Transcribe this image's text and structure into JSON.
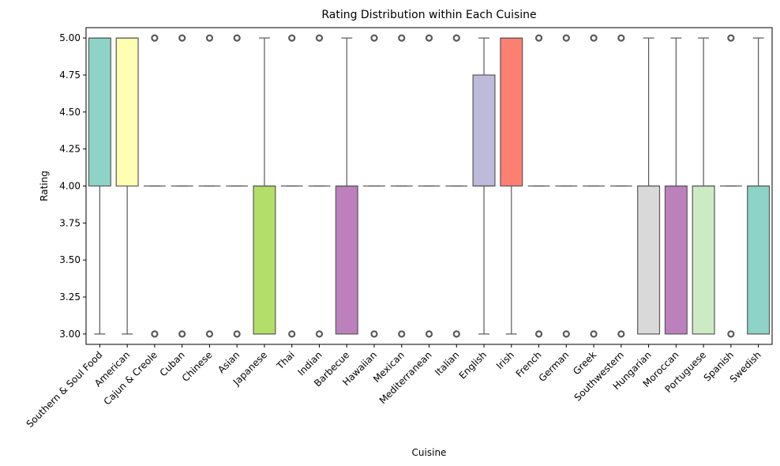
{
  "chart_data": {
    "type": "box",
    "title": "Rating Distribution within Each Cuisine",
    "xlabel": "Cuisine",
    "ylabel": "Rating",
    "ylim": [
      2.93,
      5.07
    ],
    "yticks": [
      3.0,
      3.25,
      3.5,
      3.75,
      4.0,
      4.25,
      4.5,
      4.75,
      5.0
    ],
    "ytick_labels": [
      "3.00",
      "3.25",
      "3.50",
      "3.75",
      "4.00",
      "4.25",
      "4.50",
      "4.75",
      "5.00"
    ],
    "grid": false,
    "legend": "none",
    "categories": [
      "Southern & Soul Food",
      "American",
      "Cajun & Creole",
      "Cuban",
      "Chinese",
      "Asian",
      "Japanese",
      "Thai",
      "Indian",
      "Barbecue",
      "Hawaiian",
      "Mexican",
      "Mediterranean",
      "Italian",
      "English",
      "Irish",
      "French",
      "German",
      "Greek",
      "Southwestern",
      "Hungarian",
      "Moroccan",
      "Portuguese",
      "Spanish",
      "Swedish"
    ],
    "boxes": [
      {
        "whisker_low": 3.0,
        "q1": 4.0,
        "median": 5.0,
        "q3": 5.0,
        "whisker_high": 5.0,
        "outliers": [],
        "color": "#8dd3c7"
      },
      {
        "whisker_low": 3.0,
        "q1": 4.0,
        "median": 5.0,
        "q3": 5.0,
        "whisker_high": 5.0,
        "outliers": [],
        "color": "#ffffb3"
      },
      {
        "whisker_low": 4.0,
        "q1": 4.0,
        "median": 4.0,
        "q3": 4.0,
        "whisker_high": 4.0,
        "outliers": [
          3.0,
          5.0
        ],
        "color": "#bebada"
      },
      {
        "whisker_low": 4.0,
        "q1": 4.0,
        "median": 4.0,
        "q3": 4.0,
        "whisker_high": 4.0,
        "outliers": [
          3.0,
          5.0
        ],
        "color": "#fb8072"
      },
      {
        "whisker_low": 4.0,
        "q1": 4.0,
        "median": 4.0,
        "q3": 4.0,
        "whisker_high": 4.0,
        "outliers": [
          3.0,
          5.0
        ],
        "color": "#80b1d3"
      },
      {
        "whisker_low": 4.0,
        "q1": 4.0,
        "median": 4.0,
        "q3": 4.0,
        "whisker_high": 4.0,
        "outliers": [
          3.0,
          5.0
        ],
        "color": "#fdb462"
      },
      {
        "whisker_low": 3.0,
        "q1": 3.0,
        "median": 4.0,
        "q3": 4.0,
        "whisker_high": 5.0,
        "outliers": [],
        "color": "#b3de69"
      },
      {
        "whisker_low": 4.0,
        "q1": 4.0,
        "median": 4.0,
        "q3": 4.0,
        "whisker_high": 4.0,
        "outliers": [
          3.0,
          5.0
        ],
        "color": "#fccde5"
      },
      {
        "whisker_low": 4.0,
        "q1": 4.0,
        "median": 4.0,
        "q3": 4.0,
        "whisker_high": 4.0,
        "outliers": [
          3.0,
          5.0
        ],
        "color": "#d9d9d9"
      },
      {
        "whisker_low": 3.0,
        "q1": 3.0,
        "median": 4.0,
        "q3": 4.0,
        "whisker_high": 5.0,
        "outliers": [],
        "color": "#bc80bd"
      },
      {
        "whisker_low": 4.0,
        "q1": 4.0,
        "median": 4.0,
        "q3": 4.0,
        "whisker_high": 4.0,
        "outliers": [
          3.0,
          5.0
        ],
        "color": "#ccebc5"
      },
      {
        "whisker_low": 4.0,
        "q1": 4.0,
        "median": 4.0,
        "q3": 4.0,
        "whisker_high": 4.0,
        "outliers": [
          3.0,
          5.0
        ],
        "color": "#ffed6f"
      },
      {
        "whisker_low": 4.0,
        "q1": 4.0,
        "median": 4.0,
        "q3": 4.0,
        "whisker_high": 4.0,
        "outliers": [
          3.0,
          5.0
        ],
        "color": "#8dd3c7"
      },
      {
        "whisker_low": 4.0,
        "q1": 4.0,
        "median": 4.0,
        "q3": 4.0,
        "whisker_high": 4.0,
        "outliers": [
          3.0,
          5.0
        ],
        "color": "#ffffb3"
      },
      {
        "whisker_low": 3.0,
        "q1": 4.0,
        "median": 4.0,
        "q3": 4.75,
        "whisker_high": 5.0,
        "outliers": [],
        "color": "#bebada"
      },
      {
        "whisker_low": 3.0,
        "q1": 4.0,
        "median": 5.0,
        "q3": 5.0,
        "whisker_high": 5.0,
        "outliers": [],
        "color": "#fb8072"
      },
      {
        "whisker_low": 4.0,
        "q1": 4.0,
        "median": 4.0,
        "q3": 4.0,
        "whisker_high": 4.0,
        "outliers": [
          3.0,
          5.0
        ],
        "color": "#80b1d3"
      },
      {
        "whisker_low": 4.0,
        "q1": 4.0,
        "median": 4.0,
        "q3": 4.0,
        "whisker_high": 4.0,
        "outliers": [
          3.0,
          5.0
        ],
        "color": "#fdb462"
      },
      {
        "whisker_low": 4.0,
        "q1": 4.0,
        "median": 4.0,
        "q3": 4.0,
        "whisker_high": 4.0,
        "outliers": [
          3.0,
          5.0
        ],
        "color": "#b3de69"
      },
      {
        "whisker_low": 4.0,
        "q1": 4.0,
        "median": 4.0,
        "q3": 4.0,
        "whisker_high": 4.0,
        "outliers": [
          3.0,
          5.0
        ],
        "color": "#fccde5"
      },
      {
        "whisker_low": 3.0,
        "q1": 3.0,
        "median": 4.0,
        "q3": 4.0,
        "whisker_high": 5.0,
        "outliers": [],
        "color": "#d9d9d9"
      },
      {
        "whisker_low": 3.0,
        "q1": 3.0,
        "median": 4.0,
        "q3": 4.0,
        "whisker_high": 5.0,
        "outliers": [],
        "color": "#bc80bd"
      },
      {
        "whisker_low": 3.0,
        "q1": 3.0,
        "median": 4.0,
        "q3": 4.0,
        "whisker_high": 5.0,
        "outliers": [],
        "color": "#ccebc5"
      },
      {
        "whisker_low": 4.0,
        "q1": 4.0,
        "median": 4.0,
        "q3": 4.0,
        "whisker_high": 4.0,
        "outliers": [
          3.0,
          5.0
        ],
        "color": "#ffed6f"
      },
      {
        "whisker_low": 3.0,
        "q1": 3.0,
        "median": 4.0,
        "q3": 4.0,
        "whisker_high": 5.0,
        "outliers": [],
        "color": "#8dd3c7"
      }
    ],
    "line_color": "#595959"
  }
}
